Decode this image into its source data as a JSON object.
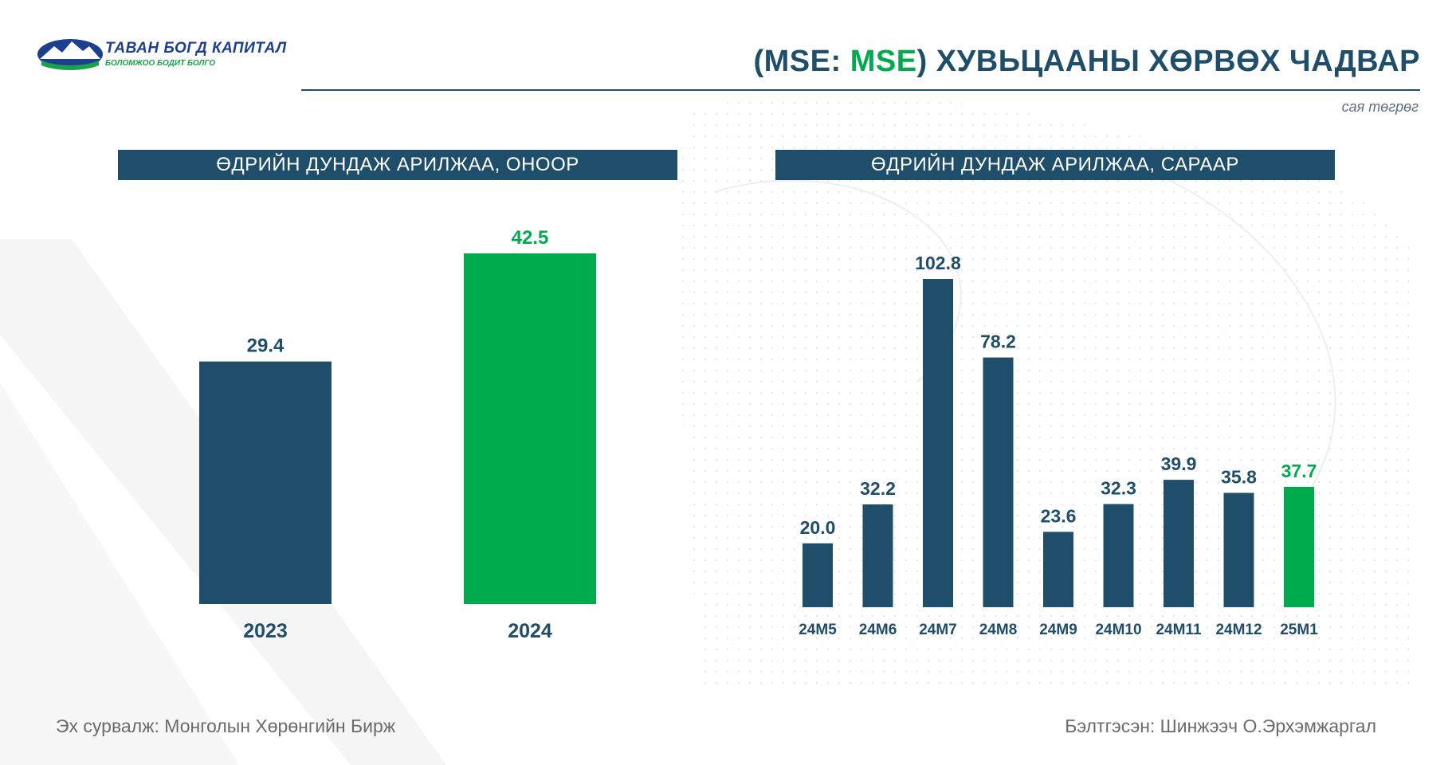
{
  "header": {
    "logo_name": "ТАВАН БОГД КАПИТАЛ",
    "logo_slogan": "БОЛОМЖОО БОДИТ БОЛГО",
    "title_prefix": "(MSE: ",
    "title_accent": "MSE",
    "title_suffix": ") ХУВЬЦААНЫ ХӨРВӨХ ЧАДВАР",
    "unit": "сая төгрөг"
  },
  "footer": {
    "source": "Эх сурвалж: Монголын Хөрөнгийн Бирж",
    "author": "Бэлтгэсэн: Шинжээч О.Эрхэмжаргал"
  },
  "colors": {
    "primary": "#1f4e6b",
    "accent": "#00ab4e",
    "footer": "#6b6b6b"
  },
  "chart_data": [
    {
      "type": "bar",
      "title": "ӨДРИЙН ДУНДАЖ АРИЛЖАА, ОНООР",
      "categories": [
        "2023",
        "2024"
      ],
      "values": [
        29.4,
        42.5
      ],
      "labels": [
        "29.4",
        "42.5"
      ],
      "highlight_index": 1,
      "ylim": [
        0,
        42.5
      ],
      "grid": false
    },
    {
      "type": "bar",
      "title": "ӨДРИЙН ДУНДАЖ АРИЛЖАА, САРААР",
      "categories": [
        "24M5",
        "24M6",
        "24M7",
        "24M8",
        "24M9",
        "24M10",
        "24M11",
        "24M12",
        "25M1"
      ],
      "values": [
        20.0,
        32.2,
        102.8,
        78.2,
        23.6,
        32.3,
        39.9,
        35.8,
        37.7
      ],
      "labels": [
        "20.0",
        "32.2",
        "102.8",
        "78.2",
        "23.6",
        "32.3",
        "39.9",
        "35.8",
        "37.7"
      ],
      "highlight_index": 8,
      "ylim": [
        0,
        102.8
      ],
      "grid": false
    }
  ]
}
